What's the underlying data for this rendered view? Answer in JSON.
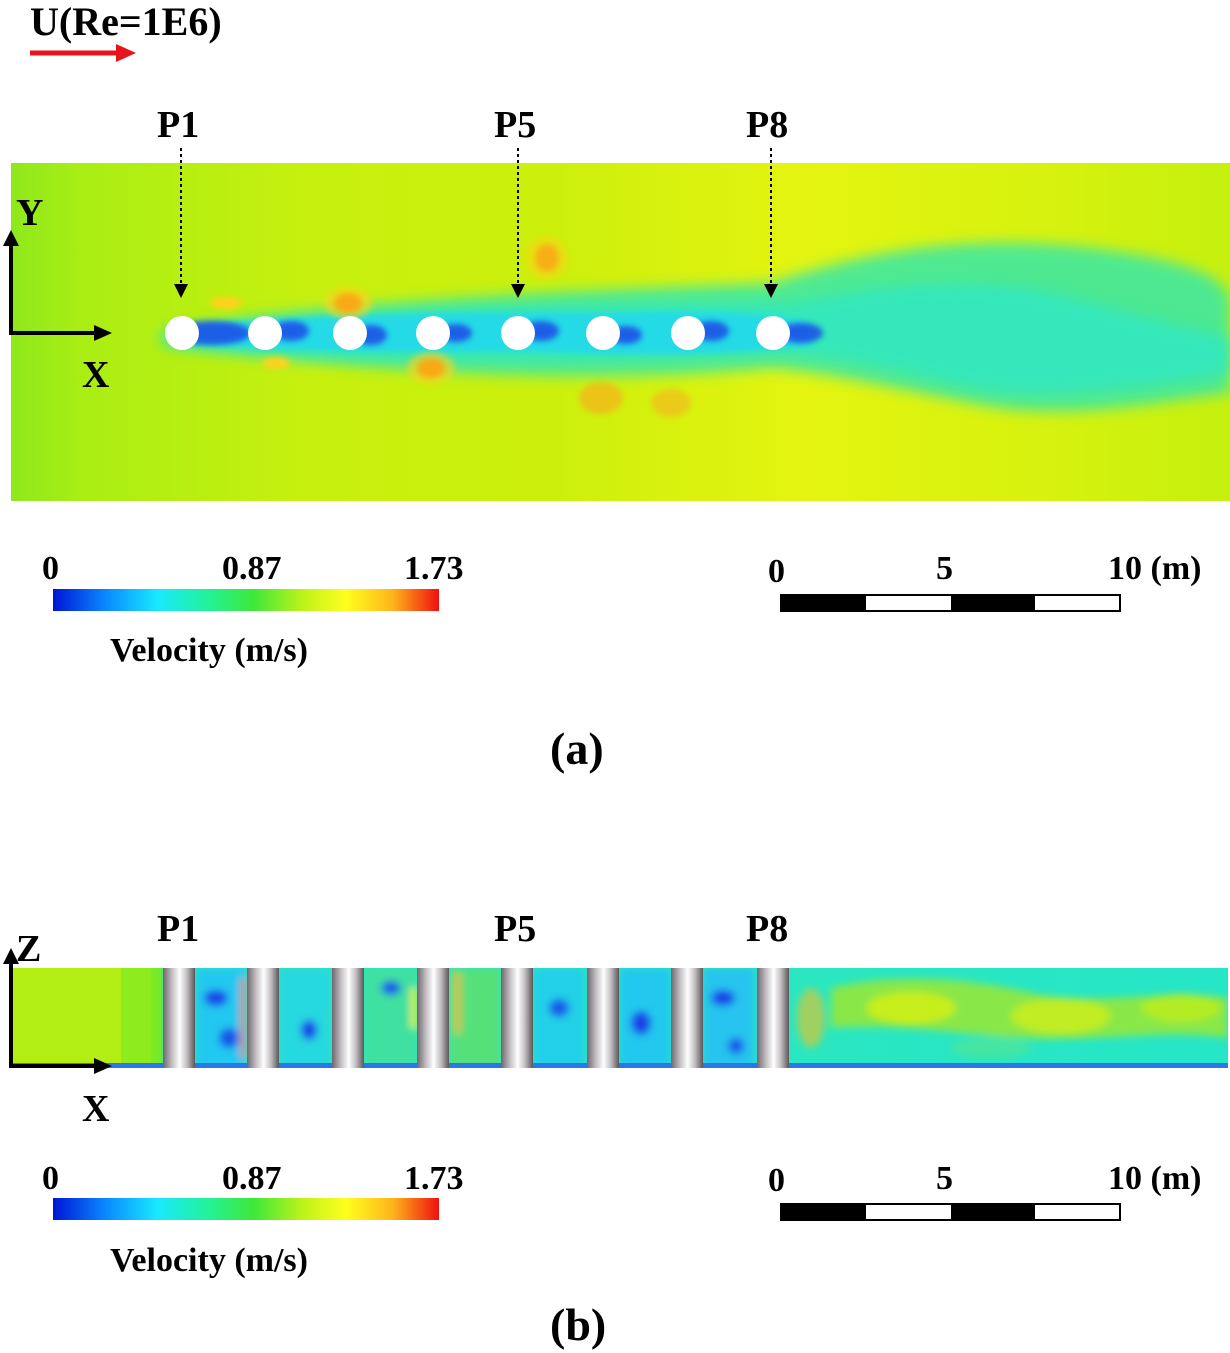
{
  "flow": {
    "label": "U(Re=1E6)",
    "arrow_color": "#e8141c"
  },
  "panel_a": {
    "caption": "(a)",
    "probes": [
      "P1",
      "P5",
      "P8"
    ],
    "axes": {
      "vertical": "Y",
      "horizontal": "X"
    },
    "colorbar": {
      "min": "0",
      "mid": "0.87",
      "max": "1.73",
      "title": "Velocity (m/s)"
    },
    "scale": {
      "labels": [
        "0",
        "5",
        "10 (m)"
      ]
    }
  },
  "panel_b": {
    "caption": "(b)",
    "probes": [
      "P1",
      "P5",
      "P8"
    ],
    "axes": {
      "vertical": "Z",
      "horizontal": "X"
    },
    "colorbar": {
      "min": "0",
      "mid": "0.87",
      "max": "1.73",
      "title": "Velocity (m/s)"
    },
    "scale": {
      "labels": [
        "0",
        "5",
        "10 (m)"
      ]
    }
  },
  "colors": {
    "background_field": "#b4ec12",
    "wake": "#2ee8b4",
    "low": "#1a40e8",
    "high": "#f06a10"
  }
}
